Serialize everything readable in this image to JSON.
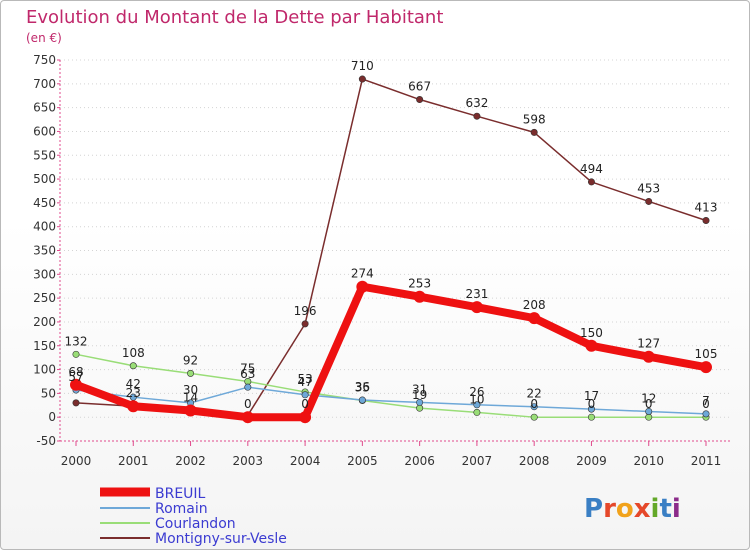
{
  "chart_data": {
    "type": "line",
    "title": "Evolution du Montant de la Dette par Habitant",
    "subtitle": "(en €)",
    "x": [
      "2000",
      "2001",
      "2002",
      "2003",
      "2004",
      "2005",
      "2006",
      "2007",
      "2008",
      "2009",
      "2010",
      "2011"
    ],
    "ylim": [
      -50,
      750
    ],
    "yticks": [
      -50,
      0,
      50,
      100,
      150,
      200,
      250,
      300,
      350,
      400,
      450,
      500,
      550,
      600,
      650,
      700,
      750
    ],
    "grid": "horizontal dotted",
    "legend_position": "bottom-left",
    "series": [
      {
        "name": "Montigny-sur-Vesle",
        "color": "#7a2d2d",
        "values": [
          30,
          23,
          14,
          4,
          196,
          710,
          667,
          632,
          598,
          494,
          453,
          413
        ],
        "labels": [
          "",
          "",
          "",
          "",
          "196",
          "710",
          "667",
          "632",
          "598",
          "494",
          "453",
          "413"
        ]
      },
      {
        "name": "Courlandon",
        "color": "#99dd77",
        "values": [
          132,
          108,
          92,
          75,
          53,
          35,
          19,
          10,
          0,
          0,
          0,
          0
        ],
        "labels": [
          "132",
          "108",
          "92",
          "75",
          "53",
          "35",
          "19",
          "10",
          "0",
          "0",
          "0",
          "0"
        ]
      },
      {
        "name": "Romain",
        "color": "#6ea8d8",
        "values": [
          57,
          42,
          30,
          63,
          47,
          36,
          31,
          26,
          22,
          17,
          12,
          7
        ],
        "labels": [
          "57",
          "42",
          "30",
          "63",
          "47",
          "36",
          "31",
          "26",
          "22",
          "17",
          "12",
          "7"
        ]
      },
      {
        "name": "BREUIL",
        "color": "#ee1111",
        "values": [
          68,
          23,
          14,
          0,
          0,
          274,
          253,
          231,
          208,
          150,
          127,
          105
        ],
        "labels": [
          "68",
          "23",
          "14",
          "0",
          "0",
          "274",
          "253",
          "231",
          "208",
          "150",
          "127",
          "105"
        ]
      }
    ]
  },
  "legend": [
    "BREUIL",
    "Romain",
    "Courlandon",
    "Montigny-sur-Vesle"
  ],
  "brand": {
    "text": "Proxiti",
    "letters": [
      "P",
      "r",
      "o",
      "x",
      "i",
      "t",
      "i"
    ],
    "colors": [
      "#3a7fc4",
      "#e5482a",
      "#f1a21b",
      "#e5482a",
      "#63a829",
      "#3a7fc4",
      "#8b2b8a"
    ]
  }
}
